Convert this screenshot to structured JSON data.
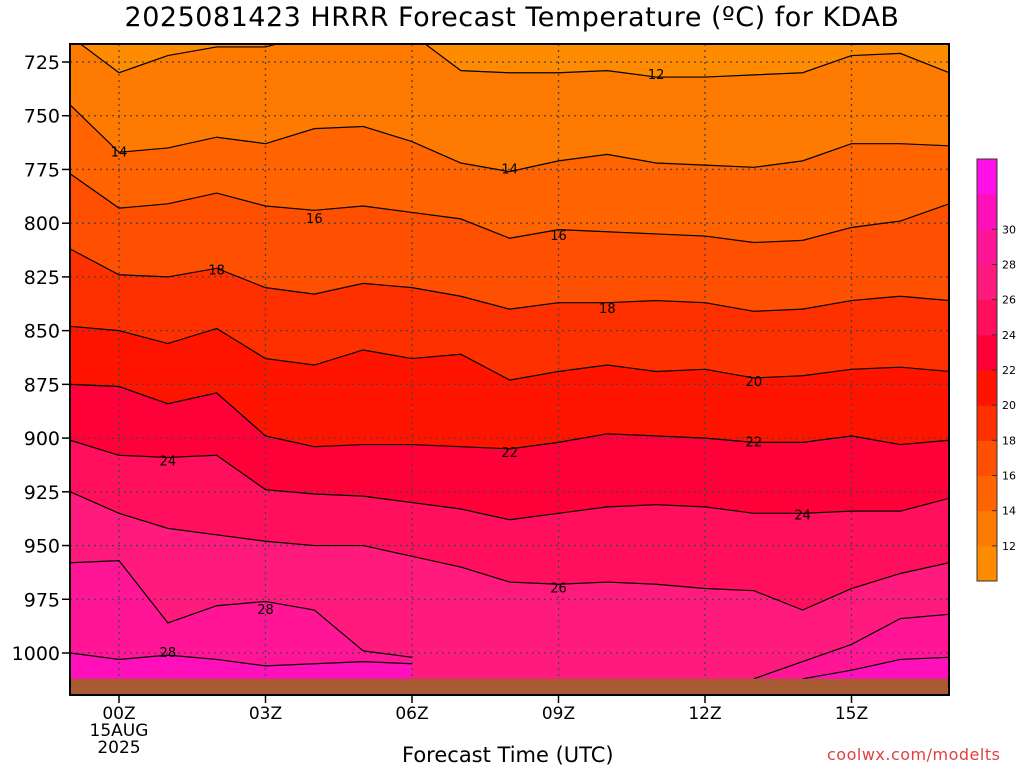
{
  "page": {
    "title": "2025081423 HRRR Forecast Temperature (ºC) for KDAB",
    "xlabel": "Forecast Time (UTC)",
    "credit": "coolwx.com/modelts"
  },
  "chart_data": {
    "type": "contour",
    "title": "2025081423 HRRR Forecast Temperature (ºC) for KDAB",
    "xlabel": "Forecast Time (UTC)",
    "ylabel": "",
    "variable": "Temperature",
    "units": "ºC",
    "x_hours": [
      -1,
      0,
      1,
      2,
      3,
      4,
      5,
      6,
      7,
      8,
      9,
      10,
      11,
      12,
      13,
      14,
      15,
      16,
      17
    ],
    "xlim": [
      -1,
      17
    ],
    "ylim": [
      1013,
      713
    ],
    "x_ticks": [
      {
        "hour": 0,
        "label": "00Z",
        "sub": [
          "15AUG",
          "2025"
        ]
      },
      {
        "hour": 3,
        "label": "03Z"
      },
      {
        "hour": 6,
        "label": "06Z"
      },
      {
        "hour": 9,
        "label": "09Z"
      },
      {
        "hour": 12,
        "label": "12Z"
      },
      {
        "hour": 15,
        "label": "15Z"
      }
    ],
    "y_ticks": [
      725,
      750,
      775,
      800,
      825,
      850,
      875,
      900,
      925,
      950,
      975,
      1000
    ],
    "grid": true,
    "surface_pressure": 1012,
    "isotherms": [
      {
        "value": 12,
        "p": [
          713,
          730,
          722,
          718,
          718,
          712,
          712,
          712,
          729,
          730,
          730,
          729,
          732,
          732,
          731,
          730,
          722,
          721,
          730
        ]
      },
      {
        "value": 14,
        "p": [
          745,
          767,
          765,
          760,
          763,
          756,
          755,
          762,
          772,
          776,
          771,
          768,
          772,
          773,
          774,
          771,
          763,
          763,
          764
        ]
      },
      {
        "value": 16,
        "p": [
          777,
          793,
          791,
          786,
          792,
          794,
          792,
          795,
          798,
          807,
          803,
          804,
          805,
          806,
          809,
          808,
          802,
          799,
          791
        ]
      },
      {
        "value": 18,
        "p": [
          812,
          824,
          825,
          821,
          830,
          833,
          828,
          830,
          834,
          840,
          837,
          837,
          836,
          837,
          841,
          840,
          836,
          834,
          836
        ]
      },
      {
        "value": 20,
        "p": [
          848,
          850,
          856,
          849,
          863,
          866,
          859,
          863,
          861,
          873,
          869,
          866,
          869,
          868,
          872,
          871,
          868,
          867,
          869
        ]
      },
      {
        "value": 22,
        "p": [
          875,
          876,
          884,
          879,
          899,
          904,
          903,
          903,
          904,
          905,
          902,
          898,
          899,
          900,
          902,
          902,
          899,
          903,
          901
        ]
      },
      {
        "value": 24,
        "p": [
          901,
          908,
          909,
          908,
          924,
          926,
          927,
          930,
          933,
          938,
          935,
          932,
          931,
          932,
          935,
          935,
          934,
          934,
          928
        ]
      },
      {
        "value": 26,
        "p": [
          925,
          935,
          942,
          945,
          948,
          950,
          950,
          955,
          960,
          967,
          968,
          967,
          968,
          970,
          971,
          980,
          970,
          963,
          958
        ]
      },
      {
        "value": 28,
        "p": [
          958,
          957,
          986,
          978,
          976,
          980,
          999,
          1002,
          null,
          null,
          null,
          null,
          null,
          null,
          1012,
          1004,
          996,
          984,
          982
        ]
      },
      {
        "value": 30,
        "p": [
          1000,
          1003,
          1001,
          1003,
          1006,
          1005,
          1004,
          1005,
          null,
          null,
          null,
          null,
          null,
          null,
          null,
          1012,
          1008,
          1003,
          1002
        ]
      }
    ],
    "contour_labels": [
      {
        "value": 12,
        "hour": 11.0,
        "p": 731
      },
      {
        "value": 14,
        "hour": 0.0,
        "p": 767
      },
      {
        "value": 14,
        "hour": 8.0,
        "p": 775
      },
      {
        "value": 16,
        "hour": 4.0,
        "p": 798
      },
      {
        "value": 16,
        "hour": 9.0,
        "p": 806
      },
      {
        "value": 18,
        "hour": 2.0,
        "p": 822
      },
      {
        "value": 18,
        "hour": 10.0,
        "p": 840
      },
      {
        "value": 20,
        "hour": 13.0,
        "p": 874
      },
      {
        "value": 22,
        "hour": 8.0,
        "p": 907
      },
      {
        "value": 22,
        "hour": 13.0,
        "p": 902
      },
      {
        "value": 24,
        "hour": 1.0,
        "p": 911
      },
      {
        "value": 24,
        "hour": 14.0,
        "p": 936
      },
      {
        "value": 26,
        "hour": 9.0,
        "p": 970
      },
      {
        "value": 28,
        "hour": 3.0,
        "p": 980
      },
      {
        "value": 28,
        "hour": 1.0,
        "p": 1000
      }
    ],
    "colorbar": {
      "levels": [
        10,
        12,
        14,
        16,
        18,
        20,
        22,
        24,
        26,
        28,
        30,
        32
      ],
      "colors": [
        "#ff8c00",
        "#ff7a00",
        "#ff6400",
        "#ff4f00",
        "#ff3000",
        "#ff1400",
        "#ff0038",
        "#ff0f5e",
        "#ff1a7d",
        "#ff1596",
        "#ff10bb",
        "#ff10e6"
      ],
      "tick_labels": [
        12,
        14,
        16,
        18,
        20,
        22,
        24,
        26,
        28,
        30
      ]
    },
    "colors": {
      "ground": "#a85a33",
      "contour": "#000000",
      "grid": "#444444"
    }
  }
}
